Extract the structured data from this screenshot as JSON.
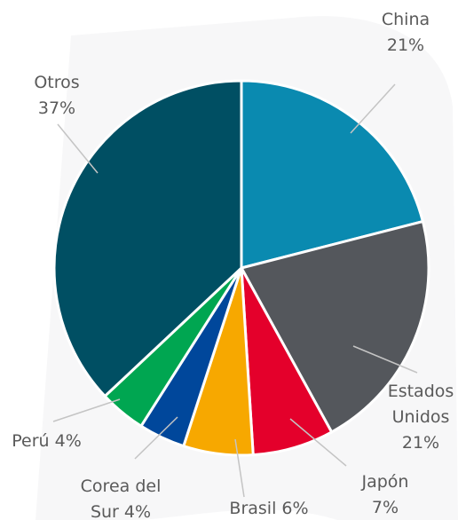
{
  "chart_data": {
    "type": "pie",
    "categories": [
      "China",
      "Estados Unidos",
      "Japón",
      "Brasil",
      "Corea del Sur",
      "Perú",
      "Otros"
    ],
    "values": [
      21,
      21,
      7,
      6,
      4,
      4,
      37
    ],
    "value_labels": [
      "21%",
      "21%",
      "7%",
      "6%",
      "4%",
      "4%",
      "37%"
    ],
    "colors": [
      "#0a8ab0",
      "#54575c",
      "#e4002b",
      "#f7a800",
      "#00479b",
      "#00a651",
      "#004f63"
    ]
  }
}
